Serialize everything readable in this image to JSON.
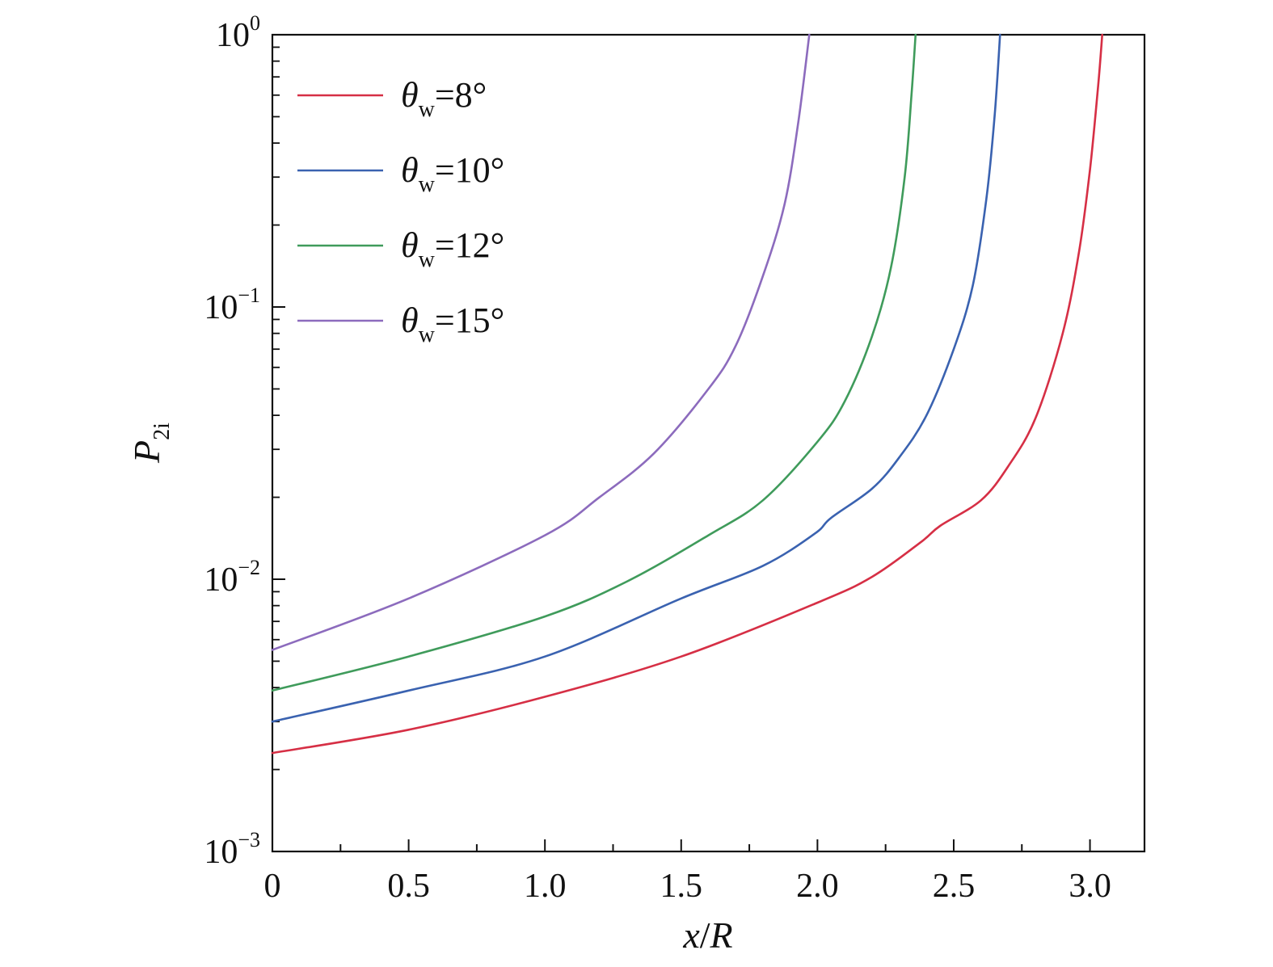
{
  "chart_data": {
    "type": "line",
    "title": "",
    "xlabel": {
      "var": "x",
      "sep": "/",
      "denom": "R"
    },
    "ylabel": {
      "main": "P",
      "sub": "2i"
    },
    "xlim": [
      0,
      3.2
    ],
    "ylim": [
      0.001,
      1
    ],
    "y_scale": "log",
    "grid": false,
    "legend_position": "top-left",
    "x_ticks": [
      {
        "value": 0,
        "label": "0"
      },
      {
        "value": 0.5,
        "label": "0.5"
      },
      {
        "value": 1.0,
        "label": "1.0"
      },
      {
        "value": 1.5,
        "label": "1.5"
      },
      {
        "value": 2.0,
        "label": "2.0"
      },
      {
        "value": 2.5,
        "label": "2.5"
      },
      {
        "value": 3.0,
        "label": "3.0"
      }
    ],
    "y_ticks": [
      {
        "value": 0.001,
        "base": "10",
        "exp": "−3"
      },
      {
        "value": 0.01,
        "base": "10",
        "exp": "−2"
      },
      {
        "value": 0.1,
        "base": "10",
        "exp": "−1"
      },
      {
        "value": 1,
        "base": "10",
        "exp": "0"
      }
    ],
    "series": [
      {
        "name": "θw=8°",
        "legend": {
          "sym": "θ",
          "sub": "w",
          "rest": "=8°"
        },
        "color": "#d62f45",
        "points": [
          [
            0,
            0.0023
          ],
          [
            0.5,
            0.0028
          ],
          [
            1.0,
            0.0037
          ],
          [
            1.5,
            0.0052
          ],
          [
            2.0,
            0.0082
          ],
          [
            2.2,
            0.0102
          ],
          [
            2.38,
            0.0137
          ],
          [
            2.45,
            0.0157
          ],
          [
            2.6,
            0.0195
          ],
          [
            2.7,
            0.026
          ],
          [
            2.8,
            0.039
          ],
          [
            2.9,
            0.08
          ],
          [
            2.96,
            0.16
          ],
          [
            3.0,
            0.32
          ],
          [
            3.03,
            0.65
          ],
          [
            3.045,
            1.0
          ]
        ]
      },
      {
        "name": "θw=10°",
        "legend": {
          "sym": "θ",
          "sub": "w",
          "rest": "=10°"
        },
        "color": "#3a62b0",
        "points": [
          [
            0,
            0.003
          ],
          [
            0.5,
            0.0039
          ],
          [
            1.0,
            0.0052
          ],
          [
            1.5,
            0.0085
          ],
          [
            1.8,
            0.0112
          ],
          [
            1.99,
            0.0147
          ],
          [
            2.05,
            0.0168
          ],
          [
            2.2,
            0.0215
          ],
          [
            2.3,
            0.028
          ],
          [
            2.4,
            0.04
          ],
          [
            2.5,
            0.07
          ],
          [
            2.57,
            0.12
          ],
          [
            2.62,
            0.25
          ],
          [
            2.65,
            0.5
          ],
          [
            2.67,
            1.0
          ]
        ]
      },
      {
        "name": "θw=12°",
        "legend": {
          "sym": "θ",
          "sub": "w",
          "rest": "=12°"
        },
        "color": "#3f9b5b",
        "points": [
          [
            0,
            0.0039
          ],
          [
            0.5,
            0.0052
          ],
          [
            1.0,
            0.0073
          ],
          [
            1.3,
            0.0098
          ],
          [
            1.6,
            0.0145
          ],
          [
            1.8,
            0.0195
          ],
          [
            2.0,
            0.032
          ],
          [
            2.1,
            0.045
          ],
          [
            2.2,
            0.078
          ],
          [
            2.27,
            0.14
          ],
          [
            2.32,
            0.3
          ],
          [
            2.345,
            0.6
          ],
          [
            2.36,
            1.0
          ]
        ]
      },
      {
        "name": "θw=15°",
        "legend": {
          "sym": "θ",
          "sub": "w",
          "rest": "=15°"
        },
        "color": "#8c6bbd",
        "points": [
          [
            0,
            0.0055
          ],
          [
            0.5,
            0.0085
          ],
          [
            1.0,
            0.0145
          ],
          [
            1.2,
            0.02
          ],
          [
            1.4,
            0.029
          ],
          [
            1.6,
            0.05
          ],
          [
            1.7,
            0.072
          ],
          [
            1.8,
            0.13
          ],
          [
            1.88,
            0.24
          ],
          [
            1.93,
            0.48
          ],
          [
            1.97,
            1.0
          ]
        ]
      }
    ]
  }
}
